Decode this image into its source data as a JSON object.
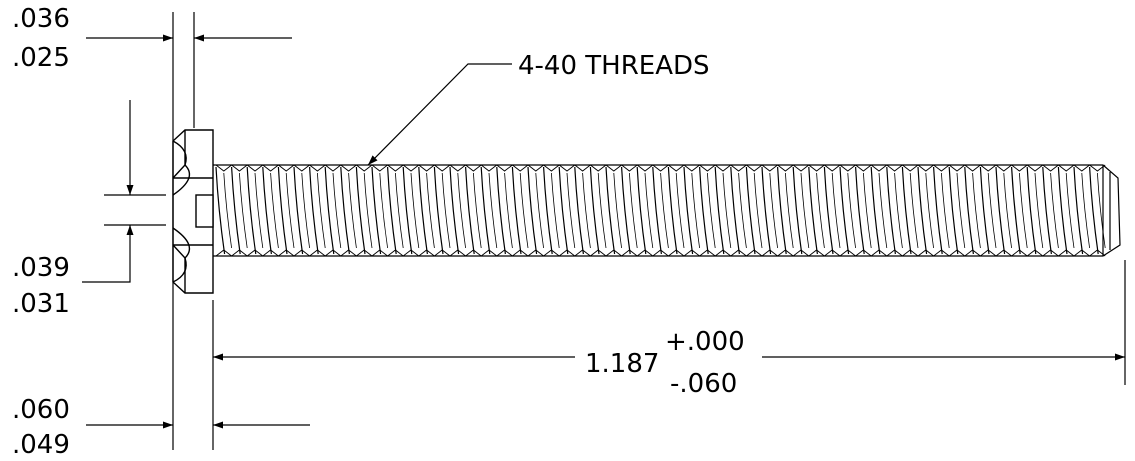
{
  "dimensions": {
    "slot_width": {
      "upper": ".036",
      "lower": ".025"
    },
    "slot_depth": {
      "upper": ".039",
      "lower": ".031"
    },
    "head_height": {
      "upper": ".060",
      "lower": ".049"
    },
    "length": {
      "nominal": "1.187",
      "plus_tol": "+.000",
      "minus_tol": "-.060"
    }
  },
  "callouts": {
    "threads": "4-40 THREADS"
  },
  "colors": {
    "line": "#000000",
    "background": "#ffffff"
  }
}
